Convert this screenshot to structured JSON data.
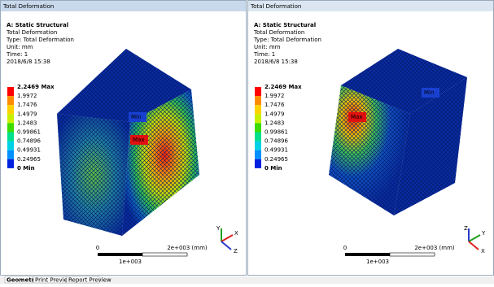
{
  "panels": [
    {
      "header": "Total Deformation",
      "info": [
        "A: Static Structural",
        "Total Deformation",
        "Type: Total Deformation",
        "Unit: mm",
        "Time: 1",
        "2018/6/8 15:38"
      ],
      "legend": [
        "2.2469 Max",
        "1.9972",
        "1.7476",
        "1.4979",
        "1.2483",
        "0.99861",
        "0.74896",
        "0.49931",
        "0.24965",
        "0 Min"
      ],
      "markers": {
        "min": "Min",
        "max": "Max"
      },
      "scale": {
        "start": "0",
        "end": "2e+003 (mm)",
        "mid": "1e+003"
      },
      "axes": [
        "Y",
        "X",
        "Z"
      ]
    },
    {
      "header": "Total Deformation",
      "info": [
        "A: Static Structural",
        "Total Deformation",
        "Type: Total Deformation",
        "Unit: mm",
        "Time: 1",
        "2018/6/8 15:38"
      ],
      "legend": [
        "2.2469 Max",
        "1.9972",
        "1.7476",
        "1.4979",
        "1.2483",
        "0.99861",
        "0.74896",
        "0.49931",
        "0.24965",
        "0 Min"
      ],
      "markers": {
        "min": "Min",
        "max": "Max"
      },
      "scale": {
        "start": "0",
        "end": "2e+003 (mm)",
        "mid": "1e+003"
      },
      "axes": [
        "Z",
        "Y",
        "X"
      ]
    }
  ],
  "tabs": [
    "Geometry",
    "Print Preview",
    "Report Preview"
  ]
}
